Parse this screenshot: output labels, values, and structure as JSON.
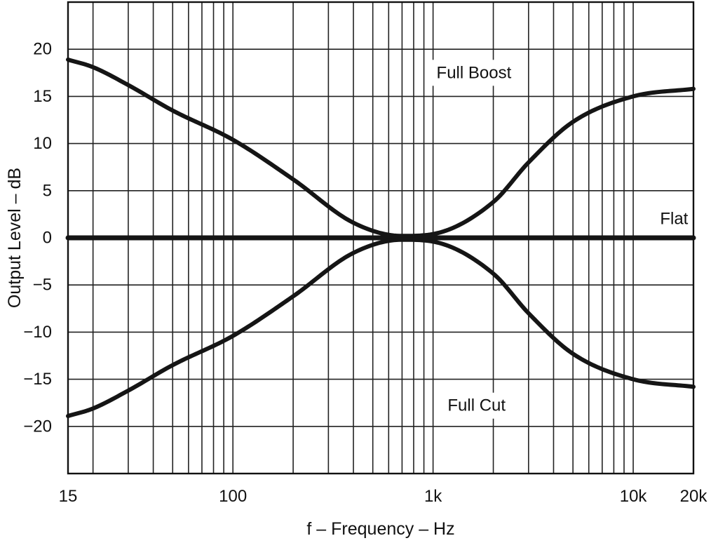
{
  "chart_data": {
    "type": "line",
    "xscale": "log",
    "xlabel": "f – Frequency – Hz",
    "ylabel": "Output Level – dB",
    "xlim": [
      15,
      20000
    ],
    "ylim": [
      -25,
      25
    ],
    "grid": true,
    "x_ticks": [
      {
        "value": 15,
        "label": "15"
      },
      {
        "value": 100,
        "label": "100"
      },
      {
        "value": 1000,
        "label": "1k"
      },
      {
        "value": 10000,
        "label": "10k"
      },
      {
        "value": 20000,
        "label": "20k"
      }
    ],
    "y_ticks": [
      {
        "value": 20,
        "label": "20"
      },
      {
        "value": 15,
        "label": "15"
      },
      {
        "value": 10,
        "label": "10"
      },
      {
        "value": 5,
        "label": "5"
      },
      {
        "value": 0,
        "label": "0"
      },
      {
        "value": -5,
        "label": "−5"
      },
      {
        "value": -10,
        "label": "−10"
      },
      {
        "value": -15,
        "label": "−15"
      },
      {
        "value": -20,
        "label": "−20"
      }
    ],
    "x_grid": [
      15,
      20,
      30,
      40,
      50,
      60,
      70,
      80,
      90,
      100,
      200,
      300,
      400,
      500,
      600,
      700,
      800,
      900,
      1000,
      2000,
      3000,
      4000,
      5000,
      6000,
      7000,
      8000,
      9000,
      10000,
      20000
    ],
    "y_grid": [
      25,
      20,
      15,
      10,
      5,
      0,
      -5,
      -10,
      -15,
      -20,
      -25
    ],
    "series": [
      {
        "name": "Full Boost",
        "label_at": {
          "x": 1600,
          "y": 17.5
        },
        "x": [
          15,
          20,
          30,
          50,
          100,
          200,
          400,
          700,
          1000,
          2000,
          3000,
          5000,
          10000,
          20000
        ],
        "y": [
          18.9,
          18.1,
          16.2,
          13.5,
          10.4,
          6.2,
          1.6,
          0.2,
          0.4,
          3.8,
          8.0,
          12.3,
          15.0,
          15.8
        ]
      },
      {
        "name": "Flat",
        "label_at": {
          "x": 16000,
          "y": 2.0
        },
        "x": [
          15,
          20000
        ],
        "y": [
          0,
          0
        ]
      },
      {
        "name": "Full Cut",
        "label_at": {
          "x": 1650,
          "y": -17.8
        },
        "x": [
          15,
          20,
          30,
          50,
          100,
          200,
          400,
          700,
          1000,
          2000,
          3000,
          5000,
          10000,
          20000
        ],
        "y": [
          -18.9,
          -18.1,
          -16.2,
          -13.5,
          -10.4,
          -6.2,
          -1.6,
          -0.2,
          -0.4,
          -3.8,
          -8.0,
          -12.3,
          -15.0,
          -15.8
        ]
      }
    ]
  }
}
